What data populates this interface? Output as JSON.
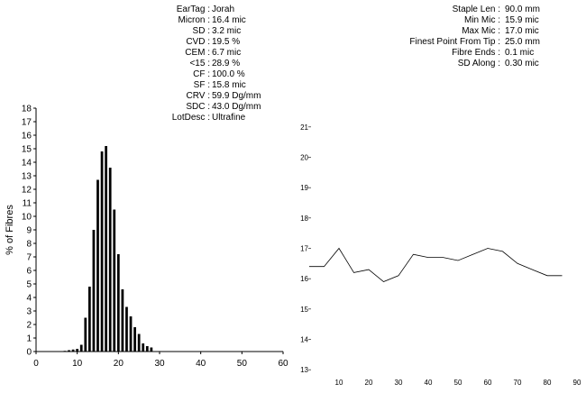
{
  "stats_left": [
    {
      "label": "EarTag :",
      "value": "Jorah"
    },
    {
      "label": "Micron :",
      "value": "16.4 mic"
    },
    {
      "label": "SD :",
      "value": "3.2 mic"
    },
    {
      "label": "CVD :",
      "value": "19.5 %"
    },
    {
      "label": "CEM :",
      "value": "6.7 mic"
    },
    {
      "label": "<15 :",
      "value": "28.9 %"
    },
    {
      "label": "CF :",
      "value": "100.0 %"
    },
    {
      "label": "SF :",
      "value": "15.8 mic"
    },
    {
      "label": "CRV :",
      "value": "59.9 Dg/mm"
    },
    {
      "label": "SDC :",
      "value": "43.0 Dg/mm"
    },
    {
      "label": "LotDesc :",
      "value": "Ultrafine"
    }
  ],
  "stats_right": [
    {
      "label": "Staple Len :",
      "value": "90.0 mm"
    },
    {
      "label": "Min Mic :",
      "value": "15.9 mic"
    },
    {
      "label": "Max Mic :",
      "value": "17.0 mic"
    },
    {
      "label": "Finest Point From Tip :",
      "value": "25.0 mm"
    },
    {
      "label": "Fibre Ends :",
      "value": "0.1 mic"
    },
    {
      "label": "SD Along :",
      "value": "0.30 mic"
    }
  ],
  "chart_data": [
    {
      "type": "bar",
      "xlabel": "Fibre Diameter (microns)",
      "ylabel": "% of Fibres",
      "xlim": [
        0,
        60
      ],
      "ylim": [
        0,
        18
      ],
      "xticks": [
        "0",
        "10",
        "20",
        "30",
        "40",
        "50",
        "60"
      ],
      "yticks": [
        "0",
        "1",
        "2",
        "3",
        "4",
        "5",
        "6",
        "7",
        "8",
        "9",
        "10",
        "11",
        "12",
        "13",
        "14",
        "15",
        "16",
        "17",
        "18"
      ],
      "x": [
        7,
        8,
        9,
        10,
        11,
        12,
        13,
        14,
        15,
        16,
        17,
        18,
        19,
        20,
        21,
        22,
        23,
        24,
        25,
        26,
        27,
        28
      ],
      "values": [
        0.05,
        0.1,
        0.15,
        0.2,
        0.5,
        2.5,
        4.8,
        9.0,
        12.7,
        14.8,
        15.2,
        13.6,
        10.5,
        7.2,
        4.6,
        3.3,
        2.6,
        1.8,
        1.3,
        0.6,
        0.4,
        0.3
      ]
    },
    {
      "type": "line",
      "xlabel": "",
      "ylabel": "",
      "xlim": [
        0,
        90
      ],
      "ylim": [
        12.5,
        21.5
      ],
      "xticks": [
        "10",
        "20",
        "30",
        "40",
        "50",
        "60",
        "70",
        "80",
        "90"
      ],
      "yticks": [
        "13",
        "14",
        "15",
        "16",
        "17",
        "18",
        "19",
        "20",
        "21"
      ],
      "x": [
        0,
        5,
        10,
        15,
        20,
        25,
        30,
        35,
        40,
        45,
        50,
        55,
        60,
        65,
        70,
        75,
        80,
        85
      ],
      "values": [
        16.4,
        16.4,
        17.0,
        16.2,
        16.3,
        15.9,
        16.1,
        16.8,
        16.7,
        16.7,
        16.6,
        16.8,
        17.0,
        16.9,
        16.5,
        16.3,
        16.1,
        16.1
      ]
    }
  ]
}
